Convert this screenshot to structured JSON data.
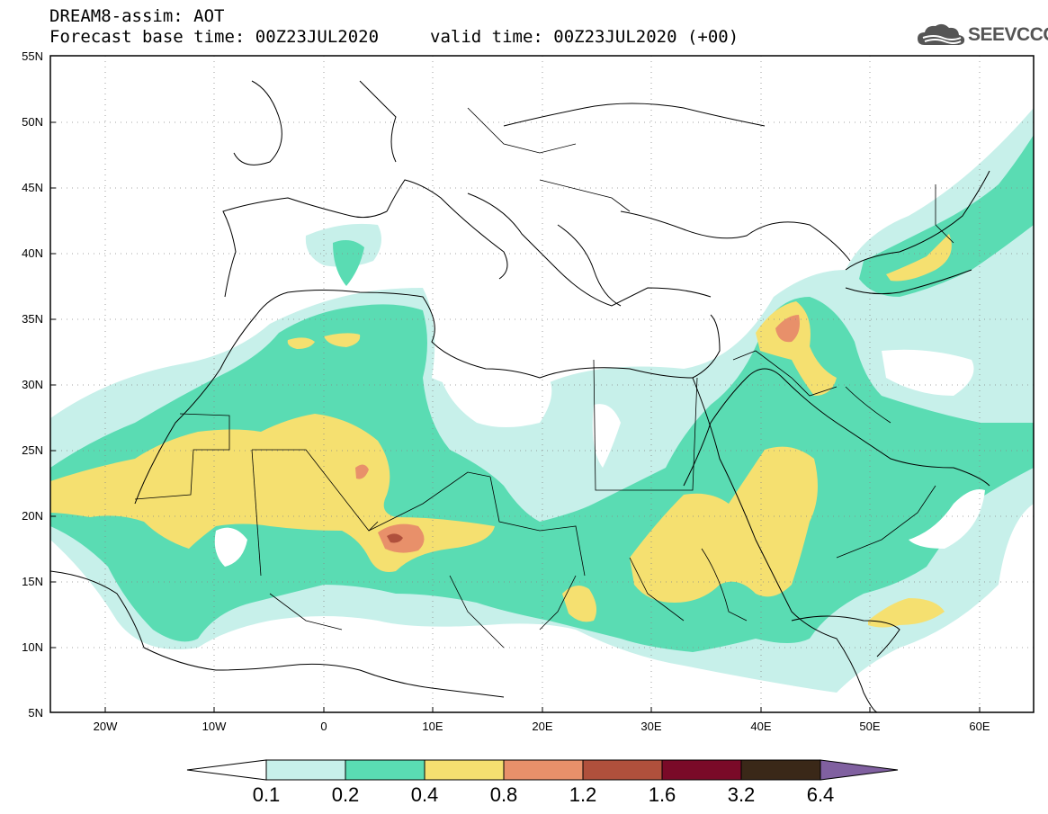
{
  "header": {
    "title": "DREAM8-assim: AOT",
    "forecast_line": "Forecast base time: 00Z23JUL2020",
    "valid_line": "valid time: 00Z23JUL2020 (+00)",
    "logo_text": "SEEVCCC",
    "logo_icon": "cloud-icon"
  },
  "map": {
    "lat_ticks": [
      "55N",
      "50N",
      "45N",
      "40N",
      "35N",
      "30N",
      "25N",
      "20N",
      "15N",
      "10N",
      "5N"
    ],
    "lon_ticks": [
      "20W",
      "10W",
      "0",
      "10E",
      "20E",
      "30E",
      "40E",
      "50E",
      "60E"
    ],
    "lat_range": [
      5,
      55
    ],
    "lon_range": [
      -25,
      65
    ],
    "grid": "dotted"
  },
  "legend": {
    "labels": [
      "0.1",
      "0.2",
      "0.4",
      "0.8",
      "1.2",
      "1.6",
      "3.2",
      "6.4"
    ],
    "colors": {
      "below": "#ffffff",
      "c1": "#c7f0ea",
      "c2": "#5adcb3",
      "c3": "#f5e070",
      "c4": "#e8906a",
      "c5": "#b0503c",
      "c6": "#7a0a28",
      "c7": "#3a2818",
      "above": "#8060a0"
    }
  }
}
